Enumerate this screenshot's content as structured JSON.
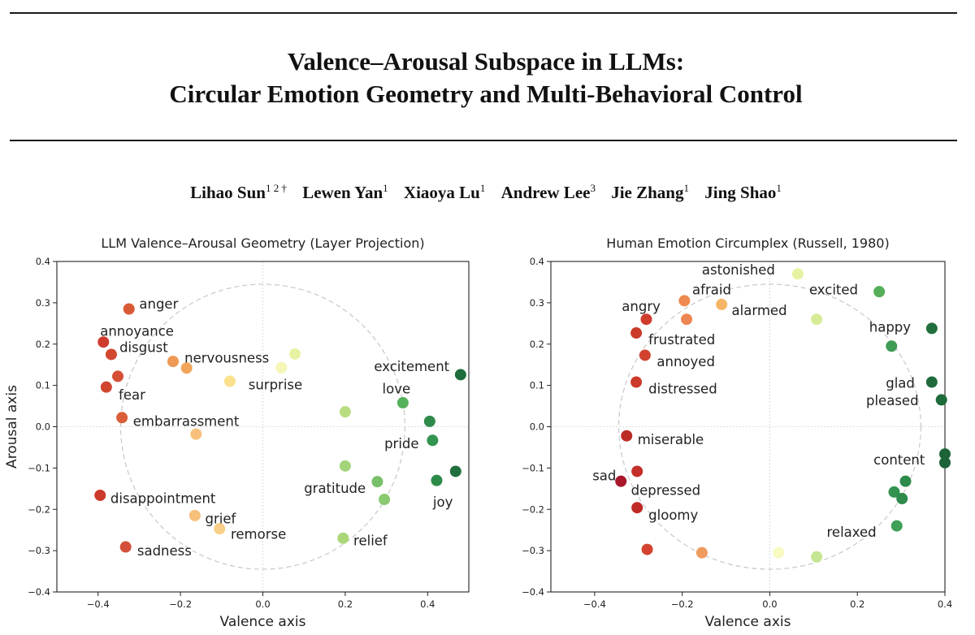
{
  "header": {
    "title_line1": "Valence–Arousal Subspace in LLMs:",
    "title_line2": "Circular Emotion Geometry and Multi-Behavioral Control",
    "authors": [
      {
        "name": "Lihao Sun",
        "sup": "1 2 †"
      },
      {
        "name": "Lewen Yan",
        "sup": "1"
      },
      {
        "name": "Xiaoya Lu",
        "sup": "1"
      },
      {
        "name": "Andrew Lee",
        "sup": "3"
      },
      {
        "name": "Jie Zhang",
        "sup": "1"
      },
      {
        "name": "Jing Shao",
        "sup": "1"
      }
    ]
  },
  "chart_data": [
    {
      "type": "scatter",
      "title": "LLM Valence–Arousal Geometry (Layer Projection)",
      "xlabel": "Valence axis",
      "ylabel": "Arousal axis",
      "xlim": [
        -0.5,
        0.5
      ],
      "ylim": [
        -0.4,
        0.4
      ],
      "xticks": [
        "−0.4",
        "−0.2",
        "0.0",
        "0.2",
        "0.4"
      ],
      "yticks": [
        "−0.4",
        "−0.3",
        "−0.2",
        "−0.1",
        "0.0",
        "0.1",
        "0.2",
        "0.3",
        "0.4"
      ],
      "circle_radius": 0.345,
      "points": [
        {
          "x": -0.325,
          "y": 0.285,
          "color": "#d95a36",
          "label": "anger",
          "label_x": -0.3,
          "label_y": 0.298,
          "anchor": "start"
        },
        {
          "x": -0.387,
          "y": 0.205,
          "color": "#cf3c2e",
          "label": "annoyance",
          "label_x": -0.395,
          "label_y": 0.232,
          "anchor": "start"
        },
        {
          "x": -0.368,
          "y": 0.175,
          "color": "#d2472f",
          "label": "disgust",
          "label_x": -0.348,
          "label_y": 0.193,
          "anchor": "start"
        },
        {
          "x": -0.352,
          "y": 0.122,
          "color": "#d54f34",
          "label": "",
          "label_x": 0,
          "label_y": 0,
          "anchor": "start"
        },
        {
          "x": -0.38,
          "y": 0.096,
          "color": "#d14530",
          "label": "fear",
          "label_x": -0.35,
          "label_y": 0.078,
          "anchor": "start"
        },
        {
          "x": -0.342,
          "y": 0.022,
          "color": "#da5e38",
          "label": "embarrassment",
          "label_x": -0.315,
          "label_y": 0.014,
          "anchor": "start"
        },
        {
          "x": -0.218,
          "y": 0.158,
          "color": "#ee9955",
          "label": "nervousness",
          "label_x": -0.19,
          "label_y": 0.167,
          "anchor": "start"
        },
        {
          "x": -0.185,
          "y": 0.142,
          "color": "#f2a65d",
          "label": "",
          "label_x": 0,
          "label_y": 0,
          "anchor": "start"
        },
        {
          "x": -0.08,
          "y": 0.11,
          "color": "#fbe08e",
          "label": "surprise",
          "label_x": -0.035,
          "label_y": 0.102,
          "anchor": "start"
        },
        {
          "x": 0.045,
          "y": 0.143,
          "color": "#f4f7b5",
          "label": "",
          "label_x": 0,
          "label_y": 0,
          "anchor": "start"
        },
        {
          "x": 0.078,
          "y": 0.176,
          "color": "#e8f2a2",
          "label": "",
          "label_x": 0,
          "label_y": 0,
          "anchor": "start"
        },
        {
          "x": -0.162,
          "y": -0.018,
          "color": "#f6c07a",
          "label": "",
          "label_x": 0,
          "label_y": 0,
          "anchor": "start"
        },
        {
          "x": 0.2,
          "y": 0.036,
          "color": "#b8dd80",
          "label": "",
          "label_x": 0,
          "label_y": 0,
          "anchor": "start"
        },
        {
          "x": 0.34,
          "y": 0.058,
          "color": "#56b15c",
          "label": "love",
          "label_x": 0.29,
          "label_y": 0.092,
          "anchor": "start"
        },
        {
          "x": 0.48,
          "y": 0.126,
          "color": "#1f6d3c",
          "label": "excitement",
          "label_x": 0.27,
          "label_y": 0.146,
          "anchor": "start"
        },
        {
          "x": 0.405,
          "y": 0.013,
          "color": "#2e8b4b",
          "label": "",
          "label_x": 0,
          "label_y": 0,
          "anchor": "start"
        },
        {
          "x": 0.412,
          "y": -0.033,
          "color": "#339450",
          "label": "pride",
          "label_x": 0.295,
          "label_y": -0.04,
          "anchor": "start"
        },
        {
          "x": 0.2,
          "y": -0.095,
          "color": "#a4d47a",
          "label": "",
          "label_x": 0,
          "label_y": 0,
          "anchor": "start"
        },
        {
          "x": 0.278,
          "y": -0.133,
          "color": "#78c06a",
          "label": "gratitude",
          "label_x": 0.1,
          "label_y": -0.148,
          "anchor": "start"
        },
        {
          "x": 0.295,
          "y": -0.176,
          "color": "#8ac970",
          "label": "",
          "label_x": 0,
          "label_y": 0,
          "anchor": "start"
        },
        {
          "x": 0.422,
          "y": -0.13,
          "color": "#2c8a49",
          "label": "joy",
          "label_x": 0.413,
          "label_y": -0.182,
          "anchor": "start"
        },
        {
          "x": 0.468,
          "y": -0.108,
          "color": "#226f3e",
          "label": "",
          "label_x": 0,
          "label_y": 0,
          "anchor": "start"
        },
        {
          "x": 0.195,
          "y": -0.27,
          "color": "#aad678",
          "label": "relief",
          "label_x": 0.22,
          "label_y": -0.275,
          "anchor": "start"
        },
        {
          "x": -0.395,
          "y": -0.166,
          "color": "#cc3a2b",
          "label": "disappointment",
          "label_x": -0.37,
          "label_y": -0.173,
          "anchor": "start"
        },
        {
          "x": -0.165,
          "y": -0.215,
          "color": "#f6c07a",
          "label": "grief",
          "label_x": -0.14,
          "label_y": -0.222,
          "anchor": "start"
        },
        {
          "x": -0.105,
          "y": -0.247,
          "color": "#f8cf86",
          "label": "remorse",
          "label_x": -0.078,
          "label_y": -0.259,
          "anchor": "start"
        },
        {
          "x": -0.333,
          "y": -0.291,
          "color": "#d4503a",
          "label": "sadness",
          "label_x": -0.305,
          "label_y": -0.3,
          "anchor": "start"
        }
      ]
    },
    {
      "type": "scatter",
      "title": "Human Emotion Circumplex (Russell, 1980)",
      "xlabel": "Valence axis",
      "ylabel": "",
      "xlim": [
        -0.5,
        0.4
      ],
      "ylim": [
        -0.4,
        0.4
      ],
      "xticks": [
        "−0.4",
        "−0.2",
        "0.0",
        "0.2",
        "0.4"
      ],
      "yticks": [
        "−0.4",
        "−0.3",
        "−0.2",
        "−0.1",
        "0.0",
        "0.1",
        "0.2",
        "0.3",
        "0.4"
      ],
      "circle_radius": 0.345,
      "points": [
        {
          "x": 0.064,
          "y": 0.37,
          "color": "#e8f2a2",
          "label": "astonished",
          "label_x": -0.155,
          "label_y": 0.38,
          "anchor": "start"
        },
        {
          "x": -0.195,
          "y": 0.305,
          "color": "#ee8a50",
          "label": "afraid",
          "label_x": -0.177,
          "label_y": 0.332,
          "anchor": "start"
        },
        {
          "x": -0.11,
          "y": 0.296,
          "color": "#f6b565",
          "label": "alarmed",
          "label_x": -0.087,
          "label_y": 0.282,
          "anchor": "start"
        },
        {
          "x": -0.19,
          "y": 0.26,
          "color": "#ec8552",
          "label": "",
          "label_x": 0,
          "label_y": 0,
          "anchor": "start"
        },
        {
          "x": -0.282,
          "y": 0.26,
          "color": "#cf3c2e",
          "label": "angry",
          "label_x": -0.338,
          "label_y": 0.292,
          "anchor": "start"
        },
        {
          "x": -0.305,
          "y": 0.227,
          "color": "#cb3a2b",
          "label": "frustrated",
          "label_x": -0.277,
          "label_y": 0.211,
          "anchor": "start"
        },
        {
          "x": -0.285,
          "y": 0.173,
          "color": "#d2432f",
          "label": "annoyed",
          "label_x": -0.258,
          "label_y": 0.158,
          "anchor": "start"
        },
        {
          "x": -0.305,
          "y": 0.108,
          "color": "#cc3a2b",
          "label": "distressed",
          "label_x": -0.277,
          "label_y": 0.092,
          "anchor": "start"
        },
        {
          "x": 0.107,
          "y": 0.26,
          "color": "#d6eb94",
          "label": "",
          "label_x": 0,
          "label_y": 0,
          "anchor": "start"
        },
        {
          "x": 0.25,
          "y": 0.327,
          "color": "#55ae5a",
          "label": "excited",
          "label_x": 0.09,
          "label_y": 0.332,
          "anchor": "start"
        },
        {
          "x": 0.37,
          "y": 0.238,
          "color": "#226f3e",
          "label": "happy",
          "label_x": 0.227,
          "label_y": 0.242,
          "anchor": "start"
        },
        {
          "x": 0.278,
          "y": 0.195,
          "color": "#3e9c54",
          "label": "",
          "label_x": 0,
          "label_y": 0,
          "anchor": "start"
        },
        {
          "x": 0.37,
          "y": 0.108,
          "color": "#1f6a3a",
          "label": "glad",
          "label_x": 0.265,
          "label_y": 0.106,
          "anchor": "start"
        },
        {
          "x": 0.392,
          "y": 0.065,
          "color": "#1f6a3a",
          "label": "pleased",
          "label_x": 0.22,
          "label_y": 0.064,
          "anchor": "start"
        },
        {
          "x": 0.4,
          "y": -0.066,
          "color": "#1d6338",
          "label": "content",
          "label_x": 0.237,
          "label_y": -0.08,
          "anchor": "start"
        },
        {
          "x": 0.4,
          "y": -0.087,
          "color": "#1d6338",
          "label": "",
          "label_x": 0,
          "label_y": 0,
          "anchor": "start"
        },
        {
          "x": 0.31,
          "y": -0.132,
          "color": "#2e8b4b",
          "label": "",
          "label_x": 0,
          "label_y": 0,
          "anchor": "start"
        },
        {
          "x": 0.284,
          "y": -0.158,
          "color": "#339450",
          "label": "",
          "label_x": 0,
          "label_y": 0,
          "anchor": "start"
        },
        {
          "x": 0.302,
          "y": -0.174,
          "color": "#2e8b4b",
          "label": "",
          "label_x": 0,
          "label_y": 0,
          "anchor": "start"
        },
        {
          "x": 0.29,
          "y": -0.24,
          "color": "#3f9f56",
          "label": "relaxed",
          "label_x": 0.13,
          "label_y": -0.255,
          "anchor": "start"
        },
        {
          "x": 0.107,
          "y": -0.315,
          "color": "#c6e592",
          "label": "",
          "label_x": 0,
          "label_y": 0,
          "anchor": "start"
        },
        {
          "x": 0.02,
          "y": -0.305,
          "color": "#f8fbc2",
          "label": "",
          "label_x": 0,
          "label_y": 0,
          "anchor": "start"
        },
        {
          "x": -0.155,
          "y": -0.305,
          "color": "#f09a5e",
          "label": "",
          "label_x": 0,
          "label_y": 0,
          "anchor": "start"
        },
        {
          "x": -0.28,
          "y": -0.297,
          "color": "#d4432f",
          "label": "",
          "label_x": 0,
          "label_y": 0,
          "anchor": "start"
        },
        {
          "x": -0.327,
          "y": -0.022,
          "color": "#bd2b27",
          "label": "miserable",
          "label_x": -0.302,
          "label_y": -0.03,
          "anchor": "start"
        },
        {
          "x": -0.303,
          "y": -0.108,
          "color": "#c42f29",
          "label": "sad",
          "label_x": -0.405,
          "label_y": -0.118,
          "anchor": "start"
        },
        {
          "x": -0.34,
          "y": -0.132,
          "color": "#a8182a",
          "label": "depressed",
          "label_x": -0.317,
          "label_y": -0.153,
          "anchor": "start"
        },
        {
          "x": -0.303,
          "y": -0.196,
          "color": "#bf2a27",
          "label": "gloomy",
          "label_x": -0.277,
          "label_y": -0.213,
          "anchor": "start"
        }
      ]
    }
  ]
}
